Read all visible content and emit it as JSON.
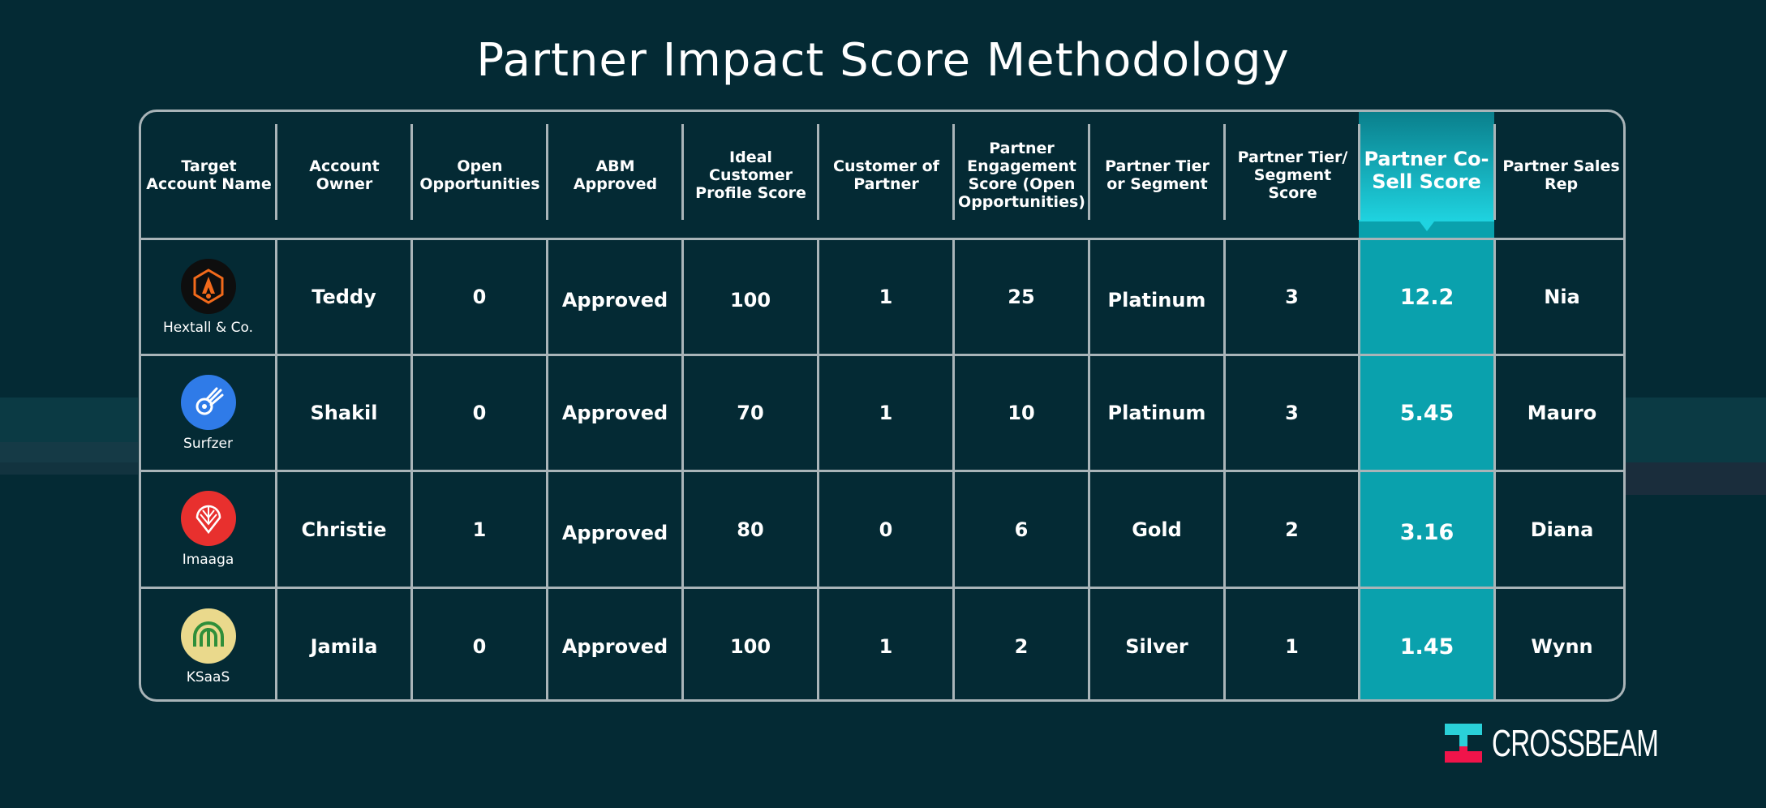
{
  "title": "Partner Impact Score Methodology",
  "headers": [
    "Target Account Name",
    "Account Owner",
    "Open Opportunities",
    "ABM Approved",
    "Ideal Customer Profile Score",
    "Customer of Partner",
    "Partner Engagement Score (Open Opportunities)",
    "Partner Tier or Segment",
    "Partner Tier/ Segment Score",
    "Partner Co-Sell Score",
    "Partner Sales Rep"
  ],
  "rows": [
    {
      "account": "Hextall & Co.",
      "owner": "Teddy",
      "open": "0",
      "abm": "Approved",
      "icp": "100",
      "customer": "1",
      "engagement": "25",
      "tier": "Platinum",
      "tier_score": "3",
      "cosell": "12.2",
      "rep": "Nia"
    },
    {
      "account": "Surfzer",
      "owner": "Shakil",
      "open": "0",
      "abm": "Approved",
      "icp": "70",
      "customer": "1",
      "engagement": "10",
      "tier": "Platinum",
      "tier_score": "3",
      "cosell": "5.45",
      "rep": "Mauro"
    },
    {
      "account": "Imaaga",
      "owner": "Christie",
      "open": "1",
      "abm": "Approved",
      "icp": "80",
      "customer": "0",
      "engagement": "6",
      "tier": "Gold",
      "tier_score": "2",
      "cosell": "3.16",
      "rep": "Diana"
    },
    {
      "account": "KSaaS",
      "owner": "Jamila",
      "open": "0",
      "abm": "Approved",
      "icp": "100",
      "customer": "1",
      "engagement": "2",
      "tier": "Silver",
      "tier_score": "1",
      "cosell": "1.45",
      "rep": "Wynn"
    }
  ],
  "brand": "CROSSBEAM",
  "colors": {
    "background": "#042a34",
    "highlight": "#0aa1ad",
    "brand_cyan": "#2ad0d8",
    "brand_red": "#f0144a"
  },
  "logos": [
    "hextall-logo-icon",
    "surfzer-logo-icon",
    "imaaga-logo-icon",
    "ksaas-logo-icon"
  ]
}
